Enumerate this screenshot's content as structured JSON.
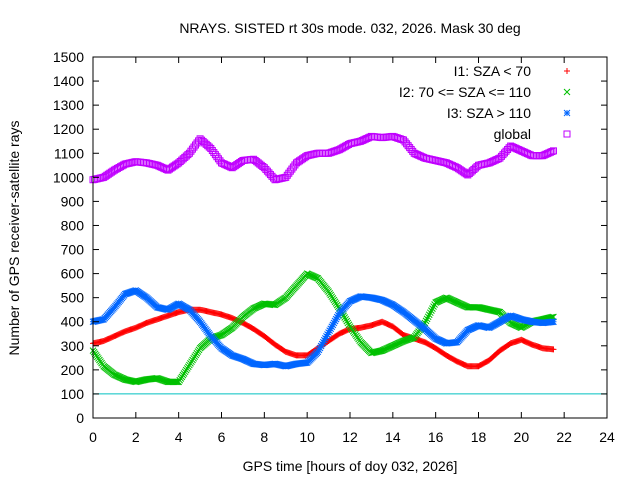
{
  "chart_data": {
    "type": "scatter",
    "title": "NRAYS. SISTED rt 30s mode. 032, 2026. Mask 30 deg",
    "xlabel": "GPS time [hours of doy 032, 2026]",
    "ylabel": "Number of GPS receiver-satellite rays",
    "xlim": [
      0,
      24
    ],
    "ylim": [
      0,
      1500
    ],
    "xticks": [
      "0",
      "2",
      "4",
      "6",
      "8",
      "10",
      "12",
      "14",
      "16",
      "18",
      "20",
      "22",
      "24"
    ],
    "yticks": [
      "0",
      "100",
      "200",
      "300",
      "400",
      "500",
      "600",
      "700",
      "800",
      "900",
      "1000",
      "1100",
      "1200",
      "1300",
      "1400",
      "1500"
    ],
    "legend_position": "top-right",
    "reference_line": {
      "y": 100,
      "color": "#00c0c0"
    },
    "series": [
      {
        "name": "I1: SZA < 70",
        "color": "#ff0000",
        "marker": "+",
        "x": [
          0,
          0.5,
          1,
          1.5,
          2,
          2.5,
          3,
          3.5,
          4,
          4.5,
          5,
          5.5,
          6,
          6.5,
          7,
          7.5,
          8,
          8.5,
          9,
          9.5,
          10,
          10.5,
          11,
          11.5,
          12,
          12.5,
          13,
          13.5,
          14,
          14.5,
          15,
          15.5,
          16,
          16.5,
          17,
          17.5,
          18,
          18.5,
          19,
          19.5,
          20,
          20.5,
          21,
          21.5
        ],
        "y": [
          310,
          320,
          340,
          360,
          375,
          395,
          410,
          425,
          440,
          450,
          450,
          440,
          430,
          415,
          395,
          370,
          340,
          305,
          275,
          260,
          260,
          290,
          320,
          350,
          370,
          375,
          385,
          400,
          380,
          345,
          330,
          315,
          290,
          260,
          235,
          215,
          215,
          240,
          280,
          310,
          325,
          305,
          290,
          285
        ]
      },
      {
        "name": "I2: 70 <= SZA <= 110",
        "color": "#00c000",
        "marker": "x",
        "x": [
          0,
          0.5,
          1,
          1.5,
          2,
          2.5,
          3,
          3.5,
          4,
          4.5,
          5,
          5.5,
          6,
          6.5,
          7,
          7.5,
          8,
          8.5,
          9,
          9.5,
          10,
          10.5,
          11,
          11.5,
          12,
          12.5,
          13,
          13.5,
          14,
          14.5,
          15,
          15.5,
          16,
          16.5,
          17,
          17.5,
          18,
          18.5,
          19,
          19.5,
          20,
          20.5,
          21,
          21.5
        ],
        "y": [
          280,
          215,
          180,
          160,
          150,
          160,
          165,
          150,
          150,
          220,
          290,
          330,
          345,
          375,
          420,
          455,
          475,
          470,
          500,
          550,
          600,
          580,
          525,
          455,
          380,
          315,
          270,
          280,
          300,
          320,
          335,
          395,
          480,
          500,
          480,
          460,
          460,
          450,
          440,
          395,
          375,
          400,
          410,
          420
        ]
      },
      {
        "name": "I3: SZA > 110",
        "color": "#0066ff",
        "marker": "*",
        "x": [
          0,
          0.5,
          1,
          1.5,
          2,
          2.5,
          3,
          3.5,
          4,
          4.5,
          5,
          5.5,
          6,
          6.5,
          7,
          7.5,
          8,
          8.5,
          9,
          9.5,
          10,
          10.5,
          11,
          11.5,
          12,
          12.5,
          13,
          13.5,
          14,
          14.5,
          15,
          15.5,
          16,
          16.5,
          17,
          17.5,
          18,
          18.5,
          19,
          19.5,
          20,
          20.5,
          21,
          21.5
        ],
        "y": [
          400,
          410,
          460,
          515,
          530,
          500,
          460,
          450,
          475,
          450,
          400,
          340,
          290,
          260,
          245,
          225,
          220,
          225,
          215,
          225,
          230,
          275,
          355,
          435,
          485,
          505,
          500,
          490,
          470,
          440,
          405,
          370,
          330,
          310,
          315,
          365,
          385,
          375,
          400,
          425,
          410,
          400,
          395,
          400
        ]
      },
      {
        "name": "global",
        "color": "#c000ff",
        "marker": "square",
        "x": [
          0,
          0.5,
          1,
          1.5,
          2,
          2.5,
          3,
          3.5,
          4,
          4.5,
          5,
          5.5,
          6,
          6.5,
          7,
          7.5,
          8,
          8.5,
          9,
          9.5,
          10,
          10.5,
          11,
          11.5,
          12,
          12.5,
          13,
          13.5,
          14,
          14.5,
          15,
          15.5,
          16,
          16.5,
          17,
          17.5,
          18,
          18.5,
          19,
          19.5,
          20,
          20.5,
          21,
          21.5
        ],
        "y": [
          990,
          1000,
          1030,
          1055,
          1065,
          1060,
          1050,
          1030,
          1060,
          1100,
          1160,
          1120,
          1060,
          1040,
          1070,
          1075,
          1040,
          990,
          1000,
          1060,
          1090,
          1100,
          1100,
          1115,
          1140,
          1150,
          1170,
          1165,
          1170,
          1155,
          1100,
          1080,
          1070,
          1060,
          1040,
          1010,
          1050,
          1060,
          1080,
          1130,
          1110,
          1090,
          1090,
          1110
        ]
      }
    ]
  }
}
